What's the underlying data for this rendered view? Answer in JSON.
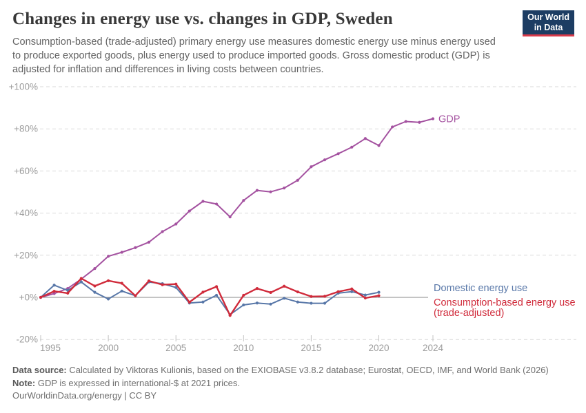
{
  "header": {
    "title": "Changes in energy use vs. changes in GDP, Sweden",
    "subtitle": "Consumption-based (trade-adjusted) primary energy use measures domestic energy use minus energy used to produce exported goods, plus energy used to produce imported goods. Gross domestic product (GDP) is adjusted for inflation and differences in living costs between countries.",
    "logo": {
      "line1": "Our World",
      "line2": "in Data",
      "bg_color": "#1d3d63",
      "accent_color": "#d93a4a"
    }
  },
  "chart_data": {
    "type": "line",
    "title": "Changes in energy use vs. changes in GDP, Sweden",
    "xlabel": "",
    "ylabel": "",
    "x_unit": "year",
    "ylim": [
      -20,
      100
    ],
    "grid": "horizontal-dashed",
    "legend_position": "end-of-line-labels",
    "yticks": [
      {
        "value": 100,
        "label": "+100%"
      },
      {
        "value": 80,
        "label": "+80%"
      },
      {
        "value": 60,
        "label": "+60%"
      },
      {
        "value": 40,
        "label": "+40%"
      },
      {
        "value": 20,
        "label": "+20%"
      },
      {
        "value": 0,
        "label": "+0%"
      },
      {
        "value": -20,
        "label": "-20%"
      }
    ],
    "xticks": [
      {
        "value": 1995,
        "label": "1995"
      },
      {
        "value": 2000,
        "label": "2000"
      },
      {
        "value": 2005,
        "label": "2005"
      },
      {
        "value": 2010,
        "label": "2010"
      },
      {
        "value": 2015,
        "label": "2015"
      },
      {
        "value": 2020,
        "label": "2020"
      },
      {
        "value": 2024,
        "label": "2024"
      }
    ],
    "series": [
      {
        "name": "GDP",
        "color": "#a452a0",
        "start_year": 1995,
        "end_year": 2024,
        "label_lines": [
          "GDP"
        ],
        "values": [
          0,
          1.8,
          4.2,
          8.7,
          13.7,
          19.5,
          21.4,
          23.6,
          26.2,
          31.2,
          34.8,
          41.0,
          45.6,
          44.3,
          38.2,
          46.0,
          50.8,
          50.1,
          51.9,
          55.6,
          62.0,
          65.3,
          68.2,
          71.3,
          75.4,
          72.1,
          80.9,
          83.5,
          83.1,
          84.8
        ]
      },
      {
        "name": "Domestic energy use",
        "color": "#5877a8",
        "start_year": 1995,
        "end_year": 2020,
        "label_lines": [
          "Domestic energy use"
        ],
        "values": [
          0,
          5.8,
          3.3,
          7.3,
          2.4,
          -0.8,
          3.0,
          0.8,
          7.3,
          6.5,
          4.7,
          -2.7,
          -2.2,
          1.0,
          -8.2,
          -3.6,
          -2.7,
          -3.2,
          -0.4,
          -2.2,
          -2.8,
          -2.8,
          2.0,
          2.7,
          1.1,
          2.4
        ]
      },
      {
        "name": "Consumption-based energy use (trade-adjusted)",
        "color": "#d02b3b",
        "start_year": 1995,
        "end_year": 2020,
        "label_lines": [
          "Consumption-based energy use",
          "(trade-adjusted)"
        ],
        "values": [
          0,
          2.9,
          2.0,
          9.0,
          5.4,
          7.9,
          6.7,
          0.8,
          7.8,
          6.0,
          6.3,
          -2.3,
          2.5,
          5.1,
          -8.6,
          1.0,
          4.2,
          2.3,
          5.3,
          2.6,
          0.4,
          0.5,
          2.7,
          4.0,
          -0.3,
          0.8
        ]
      }
    ]
  },
  "footer": {
    "data_source_label": "Data source:",
    "data_source": "Calculated by Viktoras Kulionis, based on the EXIOBASE v3.8.2 database; Eurostat, OECD, IMF, and World Bank (2026)",
    "note_label": "Note:",
    "note": "GDP is expressed in international-$ at 2021 prices.",
    "license": "OurWorldinData.org/energy | CC BY"
  }
}
